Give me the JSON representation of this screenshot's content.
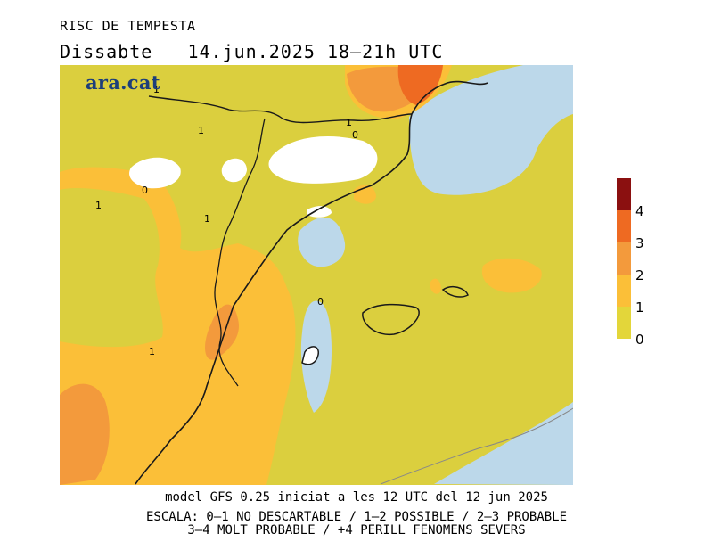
{
  "header": {
    "title": "RISC DE TEMPESTA",
    "subtitle": "Dissabte   14.jun.2025 18–21h UTC"
  },
  "brand": {
    "logo_text": "ara.cat"
  },
  "legend": {
    "levels": [
      {
        "label": "4",
        "color": "#8b1010"
      },
      {
        "label": "3",
        "color": "#ee6a22"
      },
      {
        "label": "2",
        "color": "#f39a3c"
      },
      {
        "label": "1",
        "color": "#fbbf38"
      },
      {
        "label": "0",
        "color": "#e3d63a"
      }
    ],
    "tick_labels": [
      "4",
      "3",
      "2",
      "1",
      "0"
    ]
  },
  "map": {
    "sea_color": "#bcd8ea",
    "land_color": "#dbcf3e",
    "contour_labels": [
      "1",
      "1",
      "1",
      "1",
      "1",
      "1",
      "0",
      "0",
      "0"
    ]
  },
  "footer": {
    "line1": "model GFS 0.25 iniciat a les 12 UTC del 12 jun 2025",
    "line2": "ESCALA: 0–1 NO DESCARTABLE / 1–2 POSSIBLE / 2–3 PROBABLE",
    "line3": "3–4 MOLT PROBABLE / +4 PERILL FENOMENS SEVERS"
  }
}
